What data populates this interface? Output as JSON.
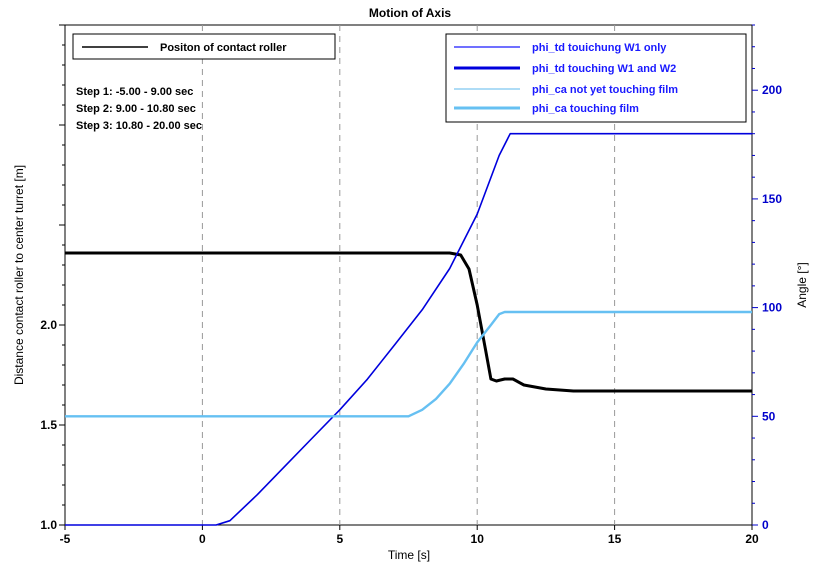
{
  "chart_data": {
    "type": "line",
    "title": "Motion of Axis",
    "xlabel": "Time [s]",
    "ylabel_left": "Distance contact roller to center turret [m]",
    "ylabel_right": "Angle [°]",
    "xlim": [
      -5,
      20
    ],
    "ylim_left": [
      1.0,
      3.5
    ],
    "ylim_right": [
      0,
      230
    ],
    "x_ticks": [
      -5,
      0,
      5,
      10,
      15,
      20
    ],
    "x_tick_labels": [
      "-5",
      "0",
      "5",
      "10",
      "15",
      "20"
    ],
    "left_ticks": [
      1.0,
      1.5,
      2.0
    ],
    "left_tick_labels": [
      "1.0",
      "1.5",
      "2.0"
    ],
    "right_ticks": [
      0,
      50,
      100,
      150,
      200
    ],
    "right_tick_labels": [
      "0",
      "50",
      "100",
      "150",
      "200"
    ],
    "vertical_gridlines_x": [
      0,
      5,
      10,
      15
    ],
    "annotations": [
      "Step 1: -5.00 - 9.00 sec",
      "Step 2: 9.00 - 10.80 sec",
      "Step 3: 10.80 - 20.00 sec"
    ],
    "legend_left": {
      "placement": "top-left",
      "entries": [
        {
          "name": "Positon of contact roller",
          "color": "#000000"
        }
      ]
    },
    "legend_right": {
      "placement": "top-right",
      "entries": [
        {
          "name": "phi_td touichung W1 only",
          "color": "#1a1aff",
          "width": 1.2
        },
        {
          "name": "phi_td touching W1 and W2",
          "color": "#0000dd",
          "width": 3
        },
        {
          "name": "phi_ca not yet touching film",
          "color": "#7ec8f0",
          "width": 1.2
        },
        {
          "name": "phi_ca touching film",
          "color": "#66c0f2",
          "width": 3
        }
      ]
    },
    "series": [
      {
        "name": "Positon of contact roller",
        "axis": "left",
        "color": "#000000",
        "x": [
          -5,
          0,
          5,
          9.0,
          9.4,
          9.7,
          10.0,
          10.3,
          10.5,
          10.7,
          11.0,
          11.3,
          11.7,
          12.5,
          13.5,
          20
        ],
        "y": [
          2.36,
          2.36,
          2.36,
          2.36,
          2.35,
          2.28,
          2.1,
          1.88,
          1.73,
          1.72,
          1.73,
          1.73,
          1.7,
          1.68,
          1.67,
          1.67
        ]
      },
      {
        "name": "phi_td",
        "axis": "right",
        "color": "#0000dd",
        "x": [
          -5,
          0.5,
          1,
          2,
          3,
          4,
          5,
          6,
          7,
          8,
          9,
          10,
          10.8,
          11.2,
          20
        ],
        "y": [
          0,
          0,
          2,
          14,
          27,
          40,
          53,
          67,
          83,
          99,
          118,
          143,
          170,
          180,
          180
        ]
      },
      {
        "name": "phi_ca",
        "axis": "right",
        "color": "#66c0f2",
        "x": [
          -5,
          7.5,
          8,
          8.5,
          9,
          9.5,
          10,
          10.5,
          10.8,
          11,
          20
        ],
        "y": [
          50,
          50,
          53,
          58,
          65,
          74,
          84,
          92,
          97,
          98,
          98
        ]
      }
    ]
  }
}
